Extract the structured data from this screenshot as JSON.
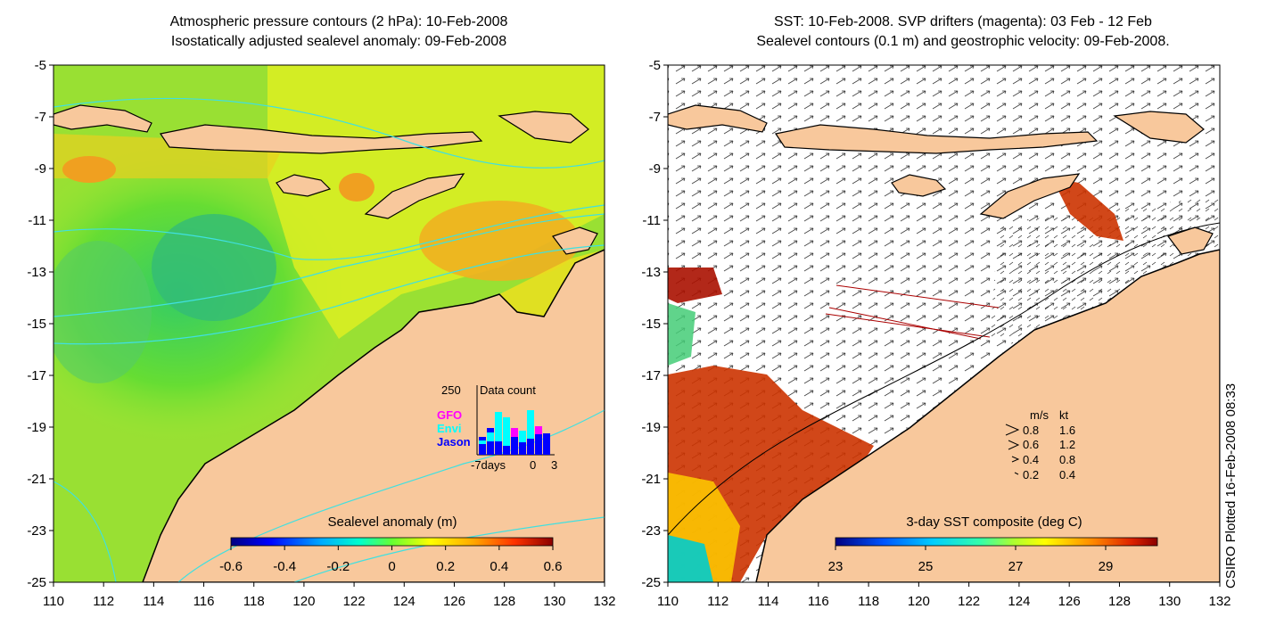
{
  "left_panel": {
    "title_line1": "Atmospheric pressure contours (2 hPa): 10-Feb-2008",
    "title_line2": "Isostatically adjusted sealevel anomaly: 09-Feb-2008",
    "x_ticks": [
      "110",
      "112",
      "114",
      "116",
      "118",
      "120",
      "122",
      "124",
      "126",
      "128",
      "130",
      "132"
    ],
    "y_ticks": [
      "-5",
      "-7",
      "-9",
      "-11",
      "-13",
      "-15",
      "-17",
      "-19",
      "-21",
      "-23",
      "-25"
    ],
    "colorbar": {
      "title": "Sealevel anomaly (m)",
      "labels": [
        "-0.6",
        "-0.4",
        "-0.2",
        "0",
        "0.2",
        "0.4",
        "0.6"
      ]
    },
    "inset": {
      "max_label": "250",
      "title": "Data count",
      "legend": [
        {
          "name": "GFO",
          "color": "#ff00ff"
        },
        {
          "name": "Envi",
          "color": "#00ffff"
        },
        {
          "name": "Jason",
          "color": "#0000ff"
        }
      ],
      "x_labels": [
        "-7days",
        "0",
        "3"
      ]
    }
  },
  "right_panel": {
    "title_line1": "SST: 10-Feb-2008. SVP drifters (magenta): 03 Feb - 12 Feb",
    "title_line2": "Sealevel contours (0.1 m) and geostrophic velocity: 09-Feb-2008.",
    "x_ticks": [
      "110",
      "112",
      "114",
      "116",
      "118",
      "120",
      "122",
      "124",
      "126",
      "128",
      "130",
      "132"
    ],
    "y_ticks": [
      "-5",
      "-7",
      "-9",
      "-11",
      "-13",
      "-15",
      "-17",
      "-19",
      "-21",
      "-23",
      "-25"
    ],
    "colorbar": {
      "title": "3-day SST composite (deg C)",
      "labels": [
        "23",
        "25",
        "27",
        "29"
      ]
    },
    "velocity_legend": {
      "header_ms": "m/s",
      "header_kt": "kt",
      "rows": [
        {
          "ms": "0.8",
          "kt": "1.6"
        },
        {
          "ms": "0.6",
          "kt": "1.2"
        },
        {
          "ms": "0.4",
          "kt": "0.8"
        },
        {
          "ms": "0.2",
          "kt": "0.4"
        }
      ]
    }
  },
  "credit": "CSIRO Plotted 16-Feb-2008 08:33",
  "colors": {
    "land": "#f8c89c",
    "ocean_white": "#ffffff",
    "contour_cyan": "#40e0e0",
    "drifter": "#ff00ff"
  }
}
